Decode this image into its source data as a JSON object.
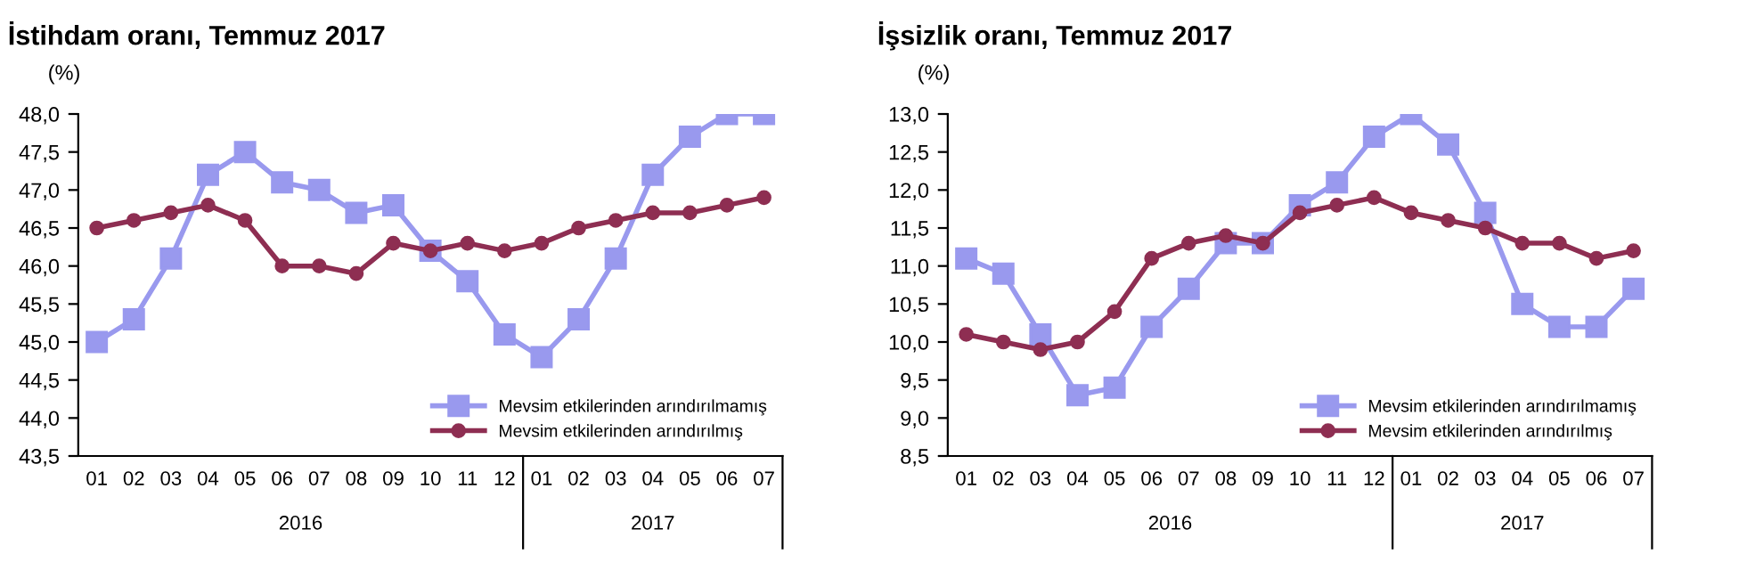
{
  "chart_data": [
    {
      "type": "line",
      "title": "İstihdam oranı, Temmuz 2017",
      "ylabel": "(%)",
      "categories": [
        "01",
        "02",
        "03",
        "04",
        "05",
        "06",
        "07",
        "08",
        "09",
        "10",
        "11",
        "12",
        "01",
        "02",
        "03",
        "04",
        "05",
        "06",
        "07"
      ],
      "series": [
        {
          "name": "Mevsim etkilerinden arındırılmamış",
          "color": "#9999ee",
          "marker": "square",
          "values": [
            45.0,
            45.3,
            46.1,
            47.2,
            47.5,
            47.1,
            47.0,
            46.7,
            46.8,
            46.2,
            45.8,
            45.1,
            44.8,
            45.3,
            46.1,
            47.2,
            47.7,
            48.0,
            48.0
          ]
        },
        {
          "name": "Mevsim etkilerinden arındırılmış",
          "color": "#8e2e52",
          "marker": "circle",
          "values": [
            46.5,
            46.6,
            46.7,
            46.8,
            46.6,
            46.0,
            46.0,
            45.9,
            46.3,
            46.2,
            46.3,
            46.2,
            46.3,
            46.5,
            46.6,
            46.7,
            46.7,
            46.8,
            46.9
          ]
        }
      ],
      "ylim": [
        43.5,
        48.0
      ],
      "yticks": [
        {
          "value": 43.5,
          "label": "43,5"
        },
        {
          "value": 44.0,
          "label": "44,0"
        },
        {
          "value": 44.5,
          "label": "44,5"
        },
        {
          "value": 45.0,
          "label": "45,0"
        },
        {
          "value": 45.5,
          "label": "45,5"
        },
        {
          "value": 46.0,
          "label": "46,0"
        },
        {
          "value": 46.5,
          "label": "46,5"
        },
        {
          "value": 47.0,
          "label": "47,0"
        },
        {
          "value": 47.5,
          "label": "47,5"
        },
        {
          "value": 48.0,
          "label": "48,0"
        }
      ],
      "annotations": [
        "2016",
        "2017"
      ],
      "grid": false,
      "legend": "bottom right",
      "line_style": "solid"
    },
    {
      "type": "line",
      "title": "İşsizlik oranı, Temmuz 2017",
      "ylabel": "(%)",
      "categories": [
        "01",
        "02",
        "03",
        "04",
        "05",
        "06",
        "07",
        "08",
        "09",
        "10",
        "11",
        "12",
        "01",
        "02",
        "03",
        "04",
        "05",
        "06",
        "07"
      ],
      "series": [
        {
          "name": "Mevsim etkilerinden arındırılmamış",
          "color": "#9999ee",
          "marker": "square",
          "values": [
            11.1,
            10.9,
            10.1,
            9.3,
            9.4,
            10.2,
            10.7,
            11.3,
            11.3,
            11.8,
            12.1,
            12.7,
            13.0,
            12.6,
            11.7,
            10.5,
            10.2,
            10.2,
            10.7
          ]
        },
        {
          "name": "Mevsim etkilerinden arındırılmış",
          "color": "#8e2e52",
          "marker": "circle",
          "values": [
            10.1,
            10.0,
            9.9,
            10.0,
            10.4,
            11.1,
            11.3,
            11.4,
            11.3,
            11.7,
            11.8,
            11.9,
            11.7,
            11.6,
            11.5,
            11.3,
            11.3,
            11.1,
            11.2
          ]
        }
      ],
      "ylim": [
        8.5,
        13.0
      ],
      "yticks": [
        {
          "value": 8.5,
          "label": "8,5"
        },
        {
          "value": 9.0,
          "label": "9,0"
        },
        {
          "value": 9.5,
          "label": "9,5"
        },
        {
          "value": 10.0,
          "label": "10,0"
        },
        {
          "value": 10.5,
          "label": "10,5"
        },
        {
          "value": 11.0,
          "label": "11,0"
        },
        {
          "value": 11.5,
          "label": "11,5"
        },
        {
          "value": 12.0,
          "label": "12,0"
        },
        {
          "value": 12.5,
          "label": "12,5"
        },
        {
          "value": 13.0,
          "label": "13,0"
        }
      ],
      "annotations": [
        "2016",
        "2017"
      ],
      "grid": false,
      "legend": "bottom right",
      "line_style": "solid"
    }
  ]
}
